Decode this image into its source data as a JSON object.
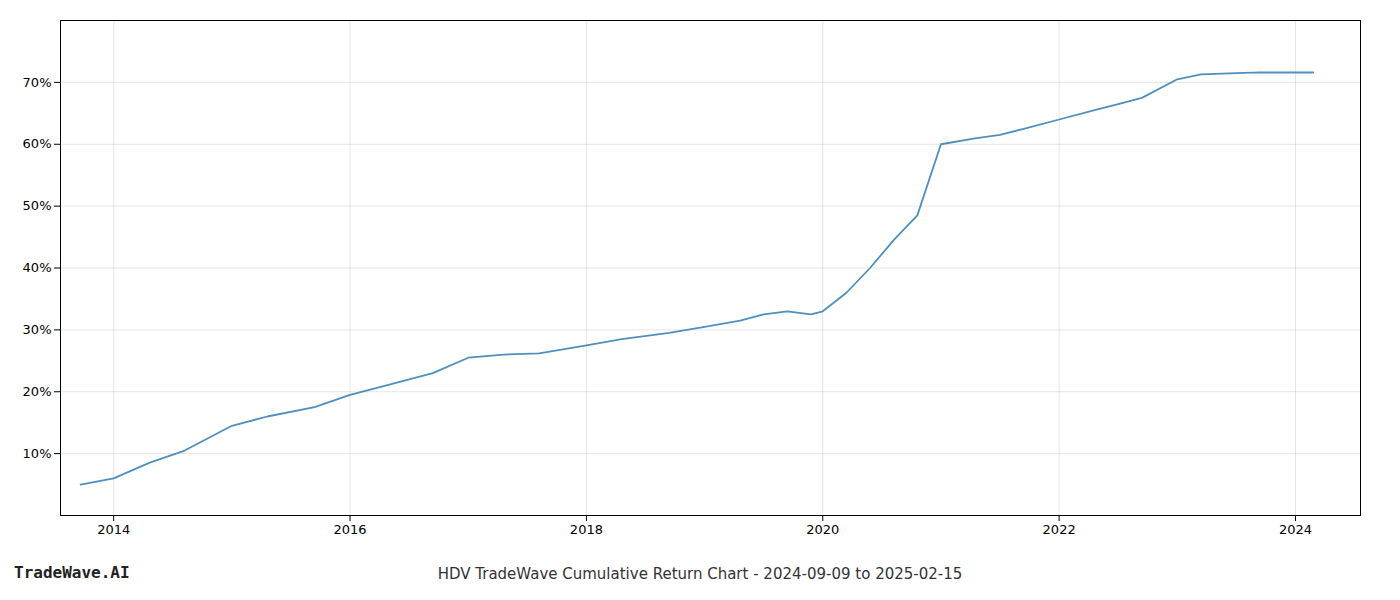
{
  "chart_data": {
    "type": "line",
    "title": "HDV TradeWave Cumulative Return Chart - 2024-09-09 to 2025-02-15",
    "annotations": [
      "TradeWave.AI"
    ],
    "color": "#4f8fbf",
    "x": [
      2013.72,
      2014.0,
      2014.3,
      2014.6,
      2015.0,
      2015.3,
      2015.7,
      2016.0,
      2016.3,
      2016.7,
      2017.0,
      2017.3,
      2017.6,
      2018.0,
      2018.3,
      2018.7,
      2019.0,
      2019.3,
      2019.5,
      2019.7,
      2019.9,
      2020.0,
      2020.2,
      2020.4,
      2020.6,
      2020.8,
      2021.0,
      2021.3,
      2021.5,
      2021.7,
      2022.0,
      2022.3,
      2022.5,
      2022.7,
      2023.0,
      2023.2,
      2023.5,
      2023.7,
      2024.0,
      2024.15
    ],
    "values": [
      5.0,
      6.0,
      8.5,
      10.5,
      14.5,
      16.0,
      17.5,
      19.5,
      21.0,
      23.0,
      25.5,
      26.0,
      26.2,
      27.5,
      28.5,
      29.5,
      30.5,
      31.5,
      32.5,
      33.0,
      32.5,
      33.0,
      36.0,
      40.0,
      44.5,
      48.5,
      60.0,
      61.0,
      61.5,
      62.5,
      64.0,
      65.5,
      66.5,
      67.5,
      70.5,
      71.3,
      71.5,
      71.6,
      71.6,
      71.6
    ],
    "xlim": [
      2013.55,
      2024.55
    ],
    "xticks": [
      2014,
      2016,
      2018,
      2020,
      2022,
      2024
    ],
    "ylim": [
      0,
      80
    ],
    "yticks": [
      {
        "value": 10,
        "label": "10%"
      },
      {
        "value": 20,
        "label": "20%"
      },
      {
        "value": 30,
        "label": "30%"
      },
      {
        "value": 40,
        "label": "40%"
      },
      {
        "value": 50,
        "label": "50%"
      },
      {
        "value": 60,
        "label": "60%"
      },
      {
        "value": 70,
        "label": "70%"
      }
    ],
    "grid": true
  }
}
